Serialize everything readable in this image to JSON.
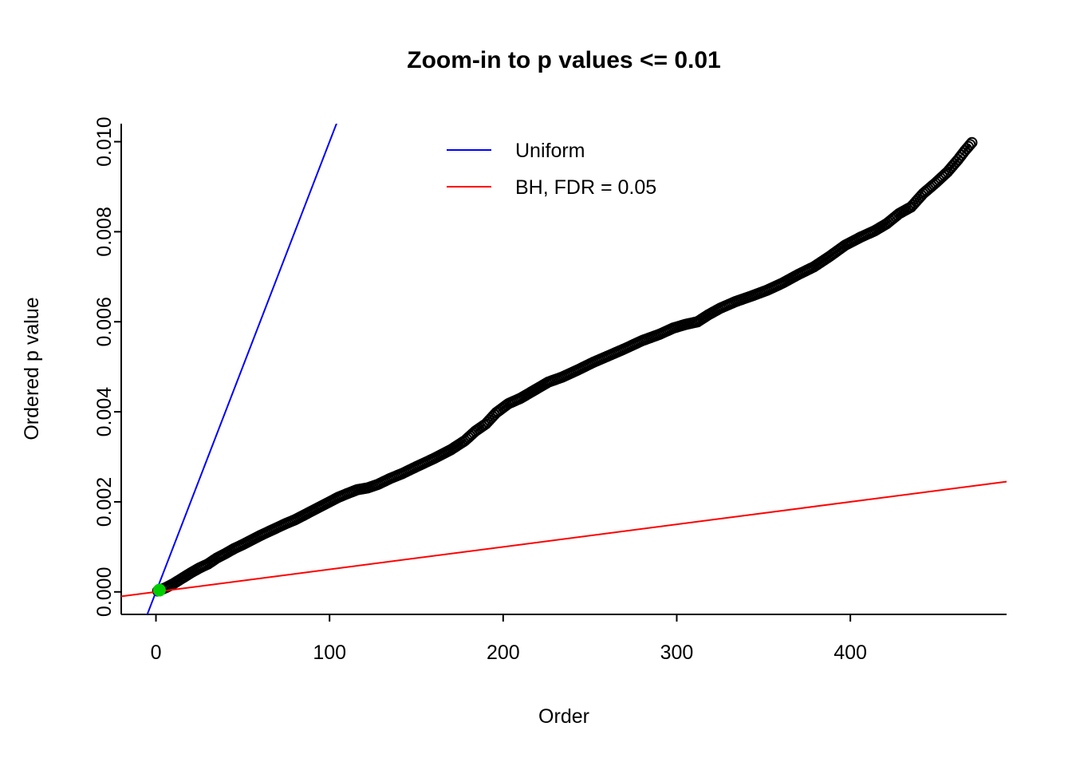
{
  "chart_data": {
    "type": "scatter",
    "title": "Zoom-in to p values <= 0.01",
    "xlabel": "Order",
    "ylabel": "Ordered p value",
    "xlim": [
      -20,
      490
    ],
    "ylim": [
      -0.0005,
      0.0104
    ],
    "xticks": [
      0,
      100,
      200,
      300,
      400
    ],
    "yticks": [
      0,
      0.002,
      0.004,
      0.006,
      0.008,
      0.01
    ],
    "ytick_labels": [
      "0.000",
      "0.002",
      "0.004",
      "0.006",
      "0.008",
      "0.010"
    ],
    "grid": false,
    "legend": {
      "position": "top-center",
      "entries": [
        {
          "label": "Uniform",
          "color": "#0000FF"
        },
        {
          "label": "BH, FDR = 0.05",
          "color": "#FF0000"
        }
      ]
    },
    "series": [
      {
        "name": "ordered-p-values",
        "type": "points",
        "marker": "open-circle",
        "color": "#000000",
        "n_points": 470,
        "anchors": [
          [
            1,
            2e-05
          ],
          [
            3,
            5e-05
          ],
          [
            6,
            0.0001
          ],
          [
            10,
            0.00018
          ],
          [
            15,
            0.0003
          ],
          [
            20,
            0.00042
          ],
          [
            25,
            0.00053
          ],
          [
            30,
            0.00062
          ],
          [
            35,
            0.00075
          ],
          [
            40,
            0.00085
          ],
          [
            45,
            0.00096
          ],
          [
            50,
            0.00105
          ],
          [
            55,
            0.00115
          ],
          [
            60,
            0.00125
          ],
          [
            65,
            0.00134
          ],
          [
            70,
            0.00143
          ],
          [
            75,
            0.00152
          ],
          [
            80,
            0.0016
          ],
          [
            85,
            0.0017
          ],
          [
            90,
            0.0018
          ],
          [
            95,
            0.0019
          ],
          [
            100,
            0.002
          ],
          [
            105,
            0.0021
          ],
          [
            110,
            0.00218
          ],
          [
            116,
            0.00227
          ],
          [
            122,
            0.00231
          ],
          [
            128,
            0.00239
          ],
          [
            135,
            0.00252
          ],
          [
            142,
            0.00263
          ],
          [
            150,
            0.00278
          ],
          [
            160,
            0.00296
          ],
          [
            170,
            0.00316
          ],
          [
            178,
            0.00336
          ],
          [
            184,
            0.00357
          ],
          [
            190,
            0.00373
          ],
          [
            196,
            0.00398
          ],
          [
            203,
            0.00418
          ],
          [
            210,
            0.0043
          ],
          [
            218,
            0.00448
          ],
          [
            226,
            0.00466
          ],
          [
            234,
            0.00477
          ],
          [
            243,
            0.00493
          ],
          [
            252,
            0.0051
          ],
          [
            261,
            0.00525
          ],
          [
            270,
            0.0054
          ],
          [
            280,
            0.00558
          ],
          [
            290,
            0.00572
          ],
          [
            298,
            0.00586
          ],
          [
            305,
            0.00594
          ],
          [
            312,
            0.006
          ],
          [
            318,
            0.00615
          ],
          [
            325,
            0.0063
          ],
          [
            334,
            0.00645
          ],
          [
            343,
            0.00657
          ],
          [
            352,
            0.0067
          ],
          [
            361,
            0.00686
          ],
          [
            370,
            0.00705
          ],
          [
            379,
            0.00722
          ],
          [
            388,
            0.00745
          ],
          [
            397,
            0.0077
          ],
          [
            406,
            0.00788
          ],
          [
            414,
            0.00802
          ],
          [
            421,
            0.00818
          ],
          [
            428,
            0.0084
          ],
          [
            435,
            0.00855
          ],
          [
            442,
            0.00885
          ],
          [
            449,
            0.00908
          ],
          [
            456,
            0.00933
          ],
          [
            462,
            0.0096
          ],
          [
            466,
            0.0098
          ],
          [
            470,
            0.00998
          ]
        ]
      },
      {
        "name": "uniform-line",
        "type": "line",
        "color": "#0000FF",
        "slope": 0.0001,
        "intercept": 0
      },
      {
        "name": "bh-line",
        "type": "line",
        "color": "#FF0000",
        "slope": 5e-06,
        "intercept": 0
      },
      {
        "name": "significant-points",
        "type": "points",
        "marker": "filled-circle",
        "color": "#00CD00",
        "points": [
          [
            2,
            4e-05
          ]
        ]
      }
    ]
  }
}
